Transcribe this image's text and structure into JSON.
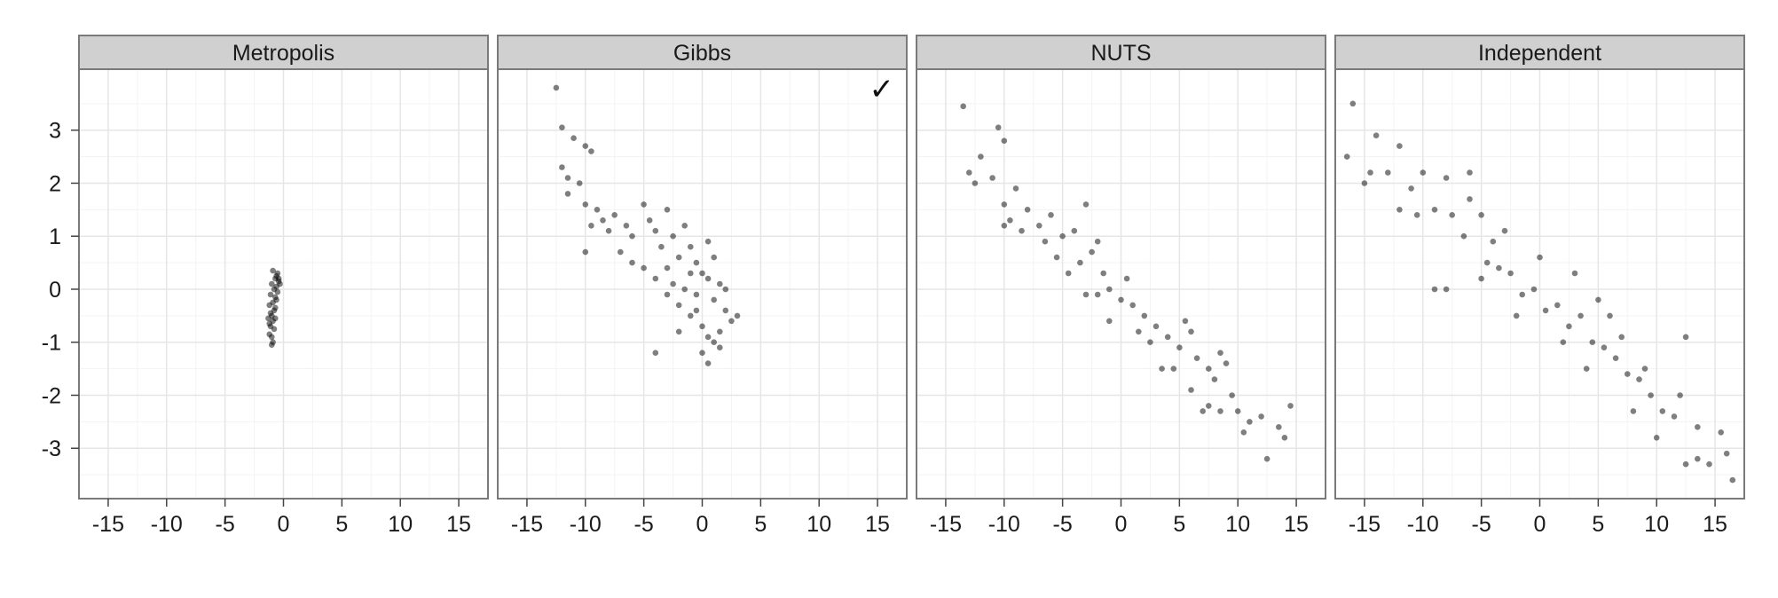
{
  "chart_data": {
    "type": "scatter",
    "layout": "small-multiples",
    "title": "",
    "xlabel": "",
    "ylabel": "",
    "xlim": [
      -17.5,
      17.5
    ],
    "ylim": [
      -3.95,
      4.15
    ],
    "x_ticks": [
      -15,
      -10,
      -5,
      0,
      5,
      10,
      15
    ],
    "x_tick_labels": [
      "-15",
      "-10",
      "-5",
      "0",
      "5",
      "10",
      "15"
    ],
    "y_ticks": [
      -3,
      -2,
      -1,
      0,
      1,
      2,
      3
    ],
    "y_tick_labels": [
      "-3",
      "-2",
      "-1",
      "0",
      "1",
      "2",
      "3"
    ],
    "grid": true,
    "point_color": "#000000",
    "point_opacity": 0.5,
    "strip_color": "#d0d0d0",
    "panels": [
      {
        "name": "Metropolis",
        "marker": "",
        "points": [
          [
            -0.9,
            0.35
          ],
          [
            -0.5,
            0.3
          ],
          [
            -0.7,
            0.2
          ],
          [
            -0.4,
            0.15
          ],
          [
            -1.0,
            0.1
          ],
          [
            -0.6,
            0.05
          ],
          [
            -0.8,
            0.0
          ],
          [
            -0.5,
            -0.05
          ],
          [
            -1.1,
            -0.1
          ],
          [
            -0.7,
            -0.15
          ],
          [
            -0.9,
            -0.25
          ],
          [
            -1.2,
            -0.3
          ],
          [
            -0.8,
            -0.4
          ],
          [
            -1.0,
            -0.5
          ],
          [
            -1.3,
            -0.55
          ],
          [
            -0.9,
            -0.6
          ],
          [
            -1.1,
            -0.7
          ],
          [
            -0.8,
            -0.75
          ],
          [
            -1.2,
            -0.85
          ],
          [
            -1.0,
            -0.9
          ],
          [
            -0.9,
            -1.0
          ],
          [
            -1.0,
            -1.05
          ],
          [
            -0.6,
            -0.2
          ],
          [
            -0.3,
            0.1
          ],
          [
            -0.7,
            -0.35
          ],
          [
            -1.1,
            -0.45
          ],
          [
            -0.6,
            0.25
          ],
          [
            -0.4,
            0.2
          ],
          [
            -1.2,
            -0.65
          ],
          [
            -0.7,
            -0.55
          ]
        ]
      },
      {
        "name": "Gibbs",
        "marker": "✓",
        "points": [
          [
            -12.5,
            3.8
          ],
          [
            -12.0,
            3.05
          ],
          [
            -11.0,
            2.85
          ],
          [
            -10.0,
            2.7
          ],
          [
            -9.5,
            2.6
          ],
          [
            -12.0,
            2.3
          ],
          [
            -11.5,
            2.1
          ],
          [
            -10.5,
            2.0
          ],
          [
            -11.5,
            1.8
          ],
          [
            -10.0,
            1.6
          ],
          [
            -9.0,
            1.5
          ],
          [
            -8.5,
            1.3
          ],
          [
            -9.5,
            1.2
          ],
          [
            -10.0,
            0.7
          ],
          [
            -7.5,
            1.4
          ],
          [
            -6.5,
            1.2
          ],
          [
            -6.0,
            1.0
          ],
          [
            -5.0,
            1.6
          ],
          [
            -4.5,
            1.3
          ],
          [
            -4.0,
            1.1
          ],
          [
            -3.0,
            1.5
          ],
          [
            -3.5,
            0.8
          ],
          [
            -2.5,
            1.0
          ],
          [
            -2.0,
            0.6
          ],
          [
            -1.5,
            1.2
          ],
          [
            -1.0,
            0.8
          ],
          [
            -0.5,
            0.5
          ],
          [
            0.5,
            0.9
          ],
          [
            1.0,
            0.6
          ],
          [
            -5.0,
            0.4
          ],
          [
            -4.0,
            0.2
          ],
          [
            -3.0,
            0.4
          ],
          [
            -2.5,
            0.1
          ],
          [
            -1.5,
            0.0
          ],
          [
            -0.5,
            -0.1
          ],
          [
            0.5,
            0.2
          ],
          [
            1.0,
            -0.2
          ],
          [
            1.5,
            0.1
          ],
          [
            2.0,
            -0.4
          ],
          [
            2.5,
            -0.6
          ],
          [
            3.0,
            -0.5
          ],
          [
            -2.0,
            -0.3
          ],
          [
            -1.0,
            -0.5
          ],
          [
            0.0,
            -0.7
          ],
          [
            0.5,
            -0.9
          ],
          [
            1.0,
            -1.0
          ],
          [
            1.5,
            -0.8
          ],
          [
            -4.0,
            -1.2
          ],
          [
            0.0,
            -1.2
          ],
          [
            0.5,
            -1.4
          ],
          [
            -6.0,
            0.5
          ],
          [
            -7.0,
            0.7
          ],
          [
            -8.0,
            1.1
          ],
          [
            -2.0,
            -0.8
          ],
          [
            1.5,
            -1.1
          ],
          [
            -3.0,
            -0.1
          ],
          [
            0.0,
            0.3
          ],
          [
            -1.0,
            0.3
          ],
          [
            2.0,
            0.0
          ],
          [
            -0.5,
            -0.4
          ]
        ]
      },
      {
        "name": "NUTS",
        "marker": "",
        "points": [
          [
            -13.5,
            3.45
          ],
          [
            -10.5,
            3.05
          ],
          [
            -10.0,
            2.8
          ],
          [
            -12.0,
            2.5
          ],
          [
            -13.0,
            2.2
          ],
          [
            -12.5,
            2.0
          ],
          [
            -11.0,
            2.1
          ],
          [
            -9.0,
            1.9
          ],
          [
            -10.0,
            1.6
          ],
          [
            -8.0,
            1.5
          ],
          [
            -9.5,
            1.3
          ],
          [
            -10.0,
            1.2
          ],
          [
            -7.0,
            1.2
          ],
          [
            -6.0,
            1.4
          ],
          [
            -5.0,
            1.0
          ],
          [
            -4.0,
            1.1
          ],
          [
            -3.0,
            1.6
          ],
          [
            -5.5,
            0.6
          ],
          [
            -3.5,
            0.5
          ],
          [
            -2.5,
            0.7
          ],
          [
            -1.5,
            0.3
          ],
          [
            -2.0,
            -0.1
          ],
          [
            -1.0,
            0.0
          ],
          [
            0.0,
            -0.2
          ],
          [
            1.0,
            -0.3
          ],
          [
            -3.0,
            -0.1
          ],
          [
            2.0,
            -0.5
          ],
          [
            3.0,
            -0.7
          ],
          [
            4.0,
            -0.9
          ],
          [
            5.0,
            -1.1
          ],
          [
            6.0,
            -0.8
          ],
          [
            6.5,
            -1.3
          ],
          [
            7.5,
            -1.5
          ],
          [
            8.0,
            -1.7
          ],
          [
            9.0,
            -1.4
          ],
          [
            9.5,
            -2.0
          ],
          [
            8.5,
            -2.3
          ],
          [
            10.0,
            -2.3
          ],
          [
            11.0,
            -2.5
          ],
          [
            12.0,
            -2.4
          ],
          [
            10.5,
            -2.7
          ],
          [
            12.5,
            -3.2
          ],
          [
            14.0,
            -2.8
          ],
          [
            14.5,
            -2.2
          ],
          [
            13.5,
            -2.6
          ],
          [
            7.0,
            -2.3
          ],
          [
            7.5,
            -2.2
          ],
          [
            3.5,
            -1.5
          ],
          [
            1.5,
            -0.8
          ],
          [
            -1.0,
            -0.6
          ],
          [
            -4.5,
            0.3
          ],
          [
            -6.5,
            0.9
          ],
          [
            -8.5,
            1.1
          ],
          [
            2.5,
            -1.0
          ],
          [
            4.5,
            -1.5
          ],
          [
            6.0,
            -1.9
          ],
          [
            8.5,
            -1.2
          ],
          [
            0.5,
            0.2
          ],
          [
            -2.0,
            0.9
          ],
          [
            5.5,
            -0.6
          ]
        ]
      },
      {
        "name": "Independent",
        "marker": "",
        "points": [
          [
            -16.0,
            3.5
          ],
          [
            -16.5,
            2.5
          ],
          [
            -15.0,
            2.0
          ],
          [
            -14.5,
            2.2
          ],
          [
            -14.0,
            2.9
          ],
          [
            -13.0,
            2.2
          ],
          [
            -12.0,
            2.7
          ],
          [
            -12.0,
            1.5
          ],
          [
            -11.0,
            1.9
          ],
          [
            -10.0,
            2.2
          ],
          [
            -9.0,
            1.5
          ],
          [
            -8.0,
            2.1
          ],
          [
            -7.5,
            1.4
          ],
          [
            -6.5,
            1.0
          ],
          [
            -6.0,
            2.2
          ],
          [
            -5.0,
            1.4
          ],
          [
            -4.0,
            0.9
          ],
          [
            -3.0,
            1.1
          ],
          [
            -9.0,
            0.0
          ],
          [
            -8.0,
            0.0
          ],
          [
            -5.0,
            0.2
          ],
          [
            -3.5,
            0.4
          ],
          [
            -2.5,
            0.3
          ],
          [
            -1.5,
            -0.1
          ],
          [
            -0.5,
            0.0
          ],
          [
            0.5,
            -0.4
          ],
          [
            1.5,
            -0.3
          ],
          [
            2.5,
            -0.7
          ],
          [
            3.5,
            -0.5
          ],
          [
            4.5,
            -1.0
          ],
          [
            5.5,
            -1.1
          ],
          [
            6.5,
            -1.3
          ],
          [
            7.5,
            -1.6
          ],
          [
            8.5,
            -1.7
          ],
          [
            9.5,
            -2.0
          ],
          [
            10.5,
            -2.3
          ],
          [
            11.5,
            -2.4
          ],
          [
            12.5,
            -3.3
          ],
          [
            13.5,
            -3.2
          ],
          [
            14.5,
            -3.3
          ],
          [
            15.5,
            -2.7
          ],
          [
            16.0,
            -3.1
          ],
          [
            16.5,
            -3.6
          ],
          [
            13.5,
            -2.6
          ],
          [
            12.0,
            -2.0
          ],
          [
            10.0,
            -2.8
          ],
          [
            9.0,
            -1.5
          ],
          [
            8.0,
            -2.3
          ],
          [
            3.0,
            0.3
          ],
          [
            5.0,
            -0.2
          ],
          [
            7.0,
            -0.9
          ],
          [
            12.5,
            -0.9
          ],
          [
            -6.0,
            1.7
          ],
          [
            -10.5,
            1.4
          ],
          [
            -4.5,
            0.5
          ],
          [
            0.0,
            0.6
          ],
          [
            2.0,
            -1.0
          ],
          [
            6.0,
            -0.5
          ],
          [
            -2.0,
            -0.5
          ],
          [
            4.0,
            -1.5
          ]
        ]
      }
    ]
  }
}
